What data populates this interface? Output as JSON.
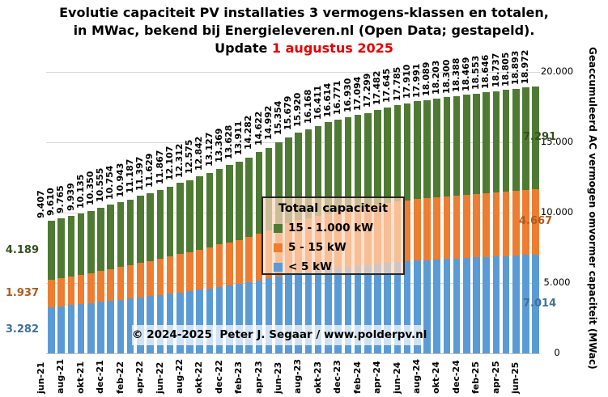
{
  "title": {
    "line1": "Evolutie capaciteit PV installaties 3 vermogens-klassen en totalen,",
    "line2": "in MWac, bekend bij Energieleveren.nl (Open Data; gestapeld).",
    "line3_prefix": "Update ",
    "line3_date": "1 augustus 2025"
  },
  "axis": {
    "y_title": "Geaccumuleerd AC vermogen omvormer capaciteit (MWac)"
  },
  "legend": {
    "title": "Totaal capaciteit",
    "items": [
      {
        "label": "15 - 1.000 kW",
        "color": "#4e7a33"
      },
      {
        "label": "5 - 15 kW",
        "color": "#ed7d31"
      },
      {
        "label": "< 5 kW",
        "color": "#5b9bd5"
      }
    ]
  },
  "copyright": "© 2024-2025  Peter J. Segaar / www.polderpv.nl",
  "segment_labels": {
    "left": {
      "green": "4.189",
      "orange": "1.937",
      "blue": "3.282"
    },
    "right": {
      "green": "7.291",
      "orange": "4.667",
      "blue": "7.014"
    }
  },
  "chart_data": {
    "type": "bar",
    "stacked": true,
    "title": "Evolutie capaciteit PV installaties 3 vermogens-klassen en totalen, in MWac (gestapeld)",
    "ylabel": "Geaccumuleerd AC vermogen omvormer capaciteit (MWac)",
    "ylim": [
      0,
      20000
    ],
    "grid": true,
    "legend_position": "center",
    "y_tick_values": [
      20000,
      15000,
      10000,
      5000,
      0
    ],
    "y_ticks": [
      "20.000",
      "15.000",
      "10.000",
      "5.000",
      "0"
    ],
    "categories": [
      "jun-21",
      "jul-21",
      "aug-21",
      "sep-21",
      "okt-21",
      "nov-21",
      "dec-21",
      "jan-22",
      "feb-22",
      "mrt-22",
      "apr-22",
      "mei-22",
      "jun-22",
      "jul-22",
      "aug-22",
      "sep-22",
      "okt-22",
      "nov-22",
      "dec-22",
      "jan-23",
      "feb-23",
      "mrt-23",
      "apr-23",
      "mei-23",
      "jun-23",
      "jul-23",
      "aug-23",
      "sep-23",
      "okt-23",
      "nov-23",
      "dec-23",
      "jan-24",
      "feb-24",
      "mrt-24",
      "apr-24",
      "mei-24",
      "jun-24",
      "jul-24",
      "aug-24",
      "sep-24",
      "okt-24",
      "nov-24",
      "dec-24",
      "jan-25",
      "feb-25",
      "mrt-25",
      "apr-25",
      "mei-25",
      "jun-25",
      "jul-25"
    ],
    "x_ticks_shown": [
      "jun-21",
      "aug-21",
      "okt-21",
      "dec-21",
      "feb-22",
      "apr-22",
      "jun-22",
      "aug-22",
      "okt-22",
      "dec-22",
      "feb-23",
      "apr-23",
      "jun-23",
      "aug-23",
      "okt-23",
      "dec-23",
      "feb-24",
      "apr-24",
      "jun-24",
      "aug-24",
      "okt-24",
      "dec-24",
      "feb-25",
      "apr-25",
      "jun-25"
    ],
    "totals": [
      9407,
      9610,
      9765,
      9939,
      10135,
      10350,
      10555,
      10754,
      10943,
      11187,
      11397,
      11629,
      11867,
      12107,
      12312,
      12575,
      12842,
      13127,
      13369,
      13628,
      13911,
      14282,
      14622,
      14992,
      15354,
      15679,
      15920,
      16168,
      16411,
      16614,
      16771,
      16930,
      17094,
      17299,
      17482,
      17645,
      17785,
      17910,
      17991,
      18089,
      18203,
      18300,
      18388,
      18469,
      18553,
      18646,
      18737,
      18805,
      18893,
      18972
    ],
    "series": [
      {
        "name": "< 5 kW",
        "color": "#5b9bd5",
        "values": [
          3282,
          3361,
          3422,
          3490,
          3566,
          3650,
          3730,
          3808,
          3881,
          3977,
          4058,
          4149,
          4242,
          4336,
          4415,
          4518,
          4622,
          4733,
          4828,
          4929,
          5039,
          5184,
          5317,
          5461,
          5602,
          5729,
          5823,
          5920,
          6015,
          6094,
          6155,
          6217,
          6281,
          6361,
          6433,
          6496,
          6551,
          6600,
          6631,
          6670,
          6714,
          6752,
          6786,
          6818,
          6851,
          6887,
          6922,
          6949,
          6983,
          7014
        ]
      },
      {
        "name": "5 - 15 kW",
        "color": "#ed7d31",
        "values": [
          1937,
          1995,
          2039,
          2089,
          2145,
          2206,
          2265,
          2321,
          2375,
          2445,
          2505,
          2571,
          2639,
          2708,
          2766,
          2841,
          2917,
          2999,
          3068,
          3142,
          3223,
          3329,
          3426,
          3531,
          3634,
          3727,
          3796,
          3867,
          3936,
          3994,
          4039,
          4084,
          4131,
          4190,
          4242,
          4288,
          4328,
          4364,
          4387,
          4415,
          4448,
          4475,
          4501,
          4524,
          4548,
          4574,
          4600,
          4620,
          4645,
          4667
        ]
      },
      {
        "name": "15 - 1.000 kW",
        "color": "#4e7a33",
        "values": [
          4188,
          4254,
          4304,
          4360,
          4424,
          4494,
          4560,
          4625,
          4687,
          4765,
          4834,
          4909,
          4986,
          5063,
          5131,
          5216,
          5303,
          5395,
          5473,
          5557,
          5649,
          5769,
          5879,
          6000,
          6118,
          6223,
          6301,
          6381,
          6460,
          6526,
          6577,
          6629,
          6682,
          6748,
          6807,
          6861,
          6906,
          6946,
          6973,
          7004,
          7041,
          7073,
          7101,
          7127,
          7154,
          7185,
          7215,
          7236,
          7265,
          7291
        ]
      }
    ]
  }
}
